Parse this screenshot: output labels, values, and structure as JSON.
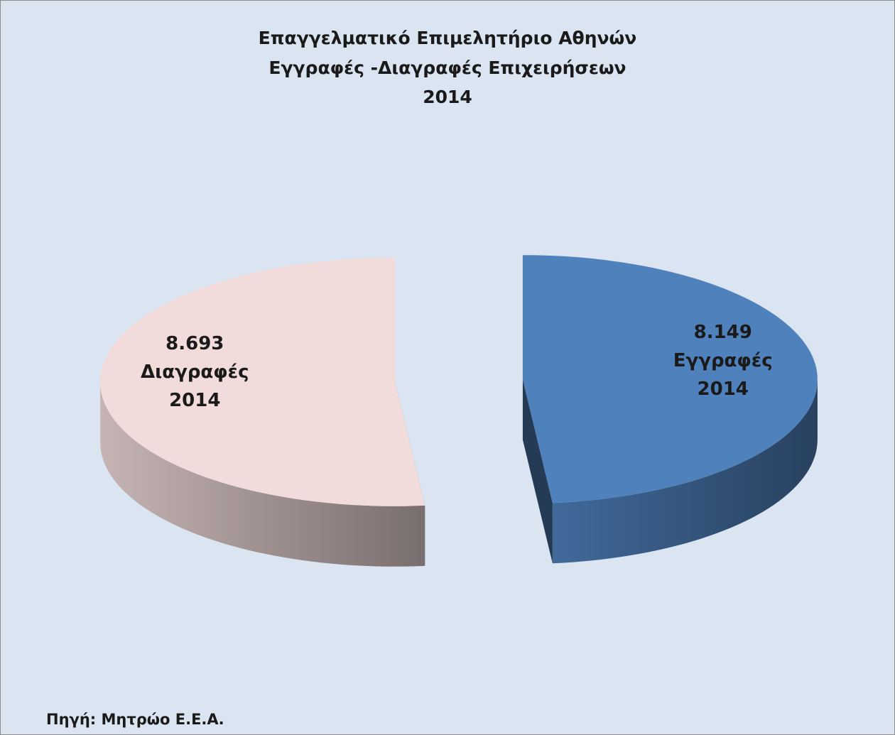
{
  "chart_data": {
    "type": "pie3d",
    "title": [
      "Επαγγελματικό Επιμελητήριο Αθηνών",
      "Εγγραφές -Διαγραφές Επιχειρήσεων",
      "2014"
    ],
    "categories": [
      "Εγγραφές 2014",
      "Διαγραφές 2014"
    ],
    "values": [
      8149,
      8693
    ],
    "value_labels": [
      "8.149",
      "8.693"
    ],
    "colors": [
      "#4f81bd",
      "#f2dcdb"
    ],
    "source": "Πηγή: Μητρώο Ε.Ε.Α."
  }
}
